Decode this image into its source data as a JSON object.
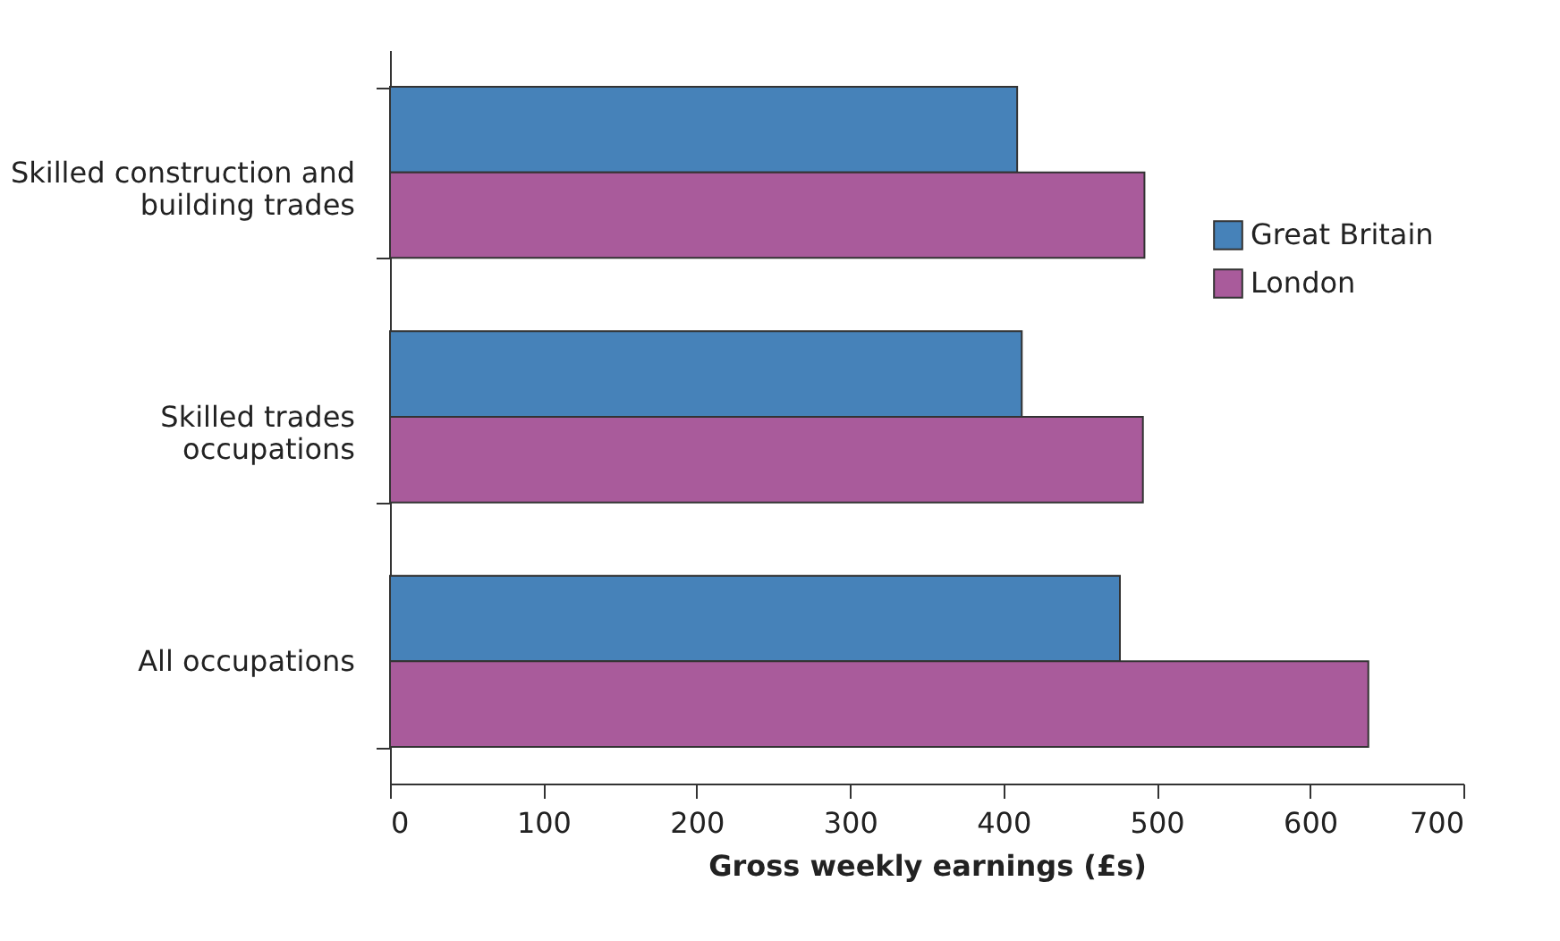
{
  "chart_data": {
    "type": "bar",
    "orientation": "horizontal",
    "xlabel": "Gross weekly earnings (£s)",
    "categories": [
      "Skilled construction and building trades",
      "Skilled trades occupations",
      "All occupations"
    ],
    "series": [
      {
        "name": "Great Britain",
        "color": "#4682b9",
        "values": [
          409,
          412,
          476
        ]
      },
      {
        "name": "London",
        "color": "#a95b9b",
        "values": [
          492,
          491,
          638
        ]
      }
    ],
    "xlim": [
      0,
      700
    ],
    "xticks": [
      0,
      100,
      200,
      300,
      400,
      500,
      600,
      700
    ],
    "grid": false,
    "legend": "right"
  }
}
